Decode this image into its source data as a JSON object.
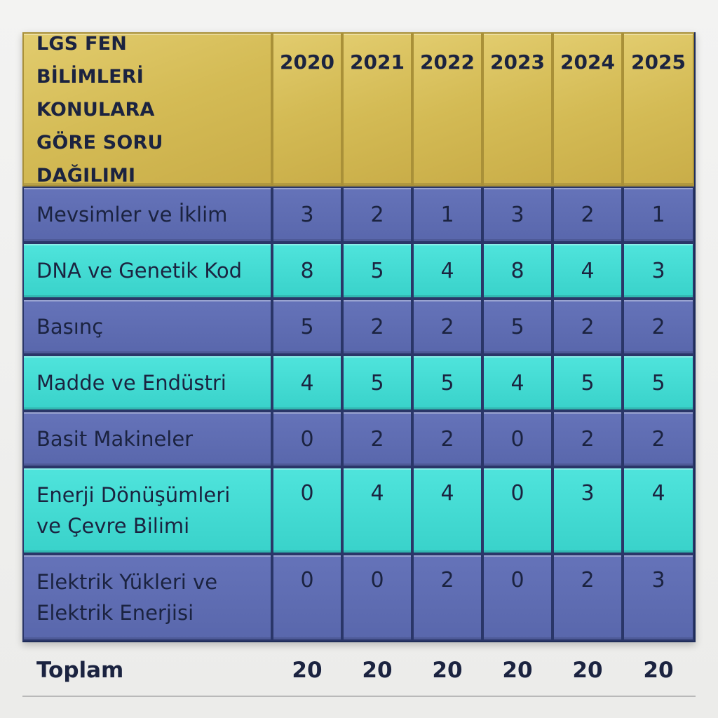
{
  "chart_data": {
    "type": "table",
    "title": "LGS FEN\nBİLİMLERİ KONULARA\nGÖRE SORU\nDAĞILIMI",
    "columns": [
      "2020",
      "2021",
      "2022",
      "2023",
      "2024",
      "2025"
    ],
    "rows": [
      {
        "label": "Mevsimler ve İklim",
        "values": [
          "3",
          "2",
          "1",
          "3",
          "2",
          "1"
        ],
        "color": "blue"
      },
      {
        "label": "DNA ve Genetik Kod",
        "values": [
          "8",
          "5",
          "4",
          "8",
          "4",
          "3"
        ],
        "color": "teal"
      },
      {
        "label": "Basınç",
        "values": [
          "5",
          "2",
          "2",
          "5",
          "2",
          "2"
        ],
        "color": "blue"
      },
      {
        "label": "Madde ve Endüstri",
        "values": [
          "4",
          "5",
          "5",
          "4",
          "5",
          "5"
        ],
        "color": "teal"
      },
      {
        "label": "Basit Makineler",
        "values": [
          "0",
          "2",
          "2",
          "0",
          "2",
          "2"
        ],
        "color": "blue"
      },
      {
        "label": "Enerji Dönüşümleri\nve Çevre Bilimi",
        "values": [
          "0",
          "4",
          "4",
          "0",
          "3",
          "4"
        ],
        "color": "teal"
      },
      {
        "label": "Elektrik Yükleri ve\nElektrik Enerjisi",
        "values": [
          "0",
          "0",
          "2",
          "0",
          "2",
          "3"
        ],
        "color": "blue"
      }
    ],
    "total": {
      "label": "Toplam",
      "values": [
        "20",
        "20",
        "20",
        "20",
        "20",
        "20"
      ]
    },
    "colors": {
      "header": "#d4bb55",
      "row_blue": "#5f6db3",
      "row_teal": "#45dcd4",
      "text": "#1b2340"
    }
  }
}
